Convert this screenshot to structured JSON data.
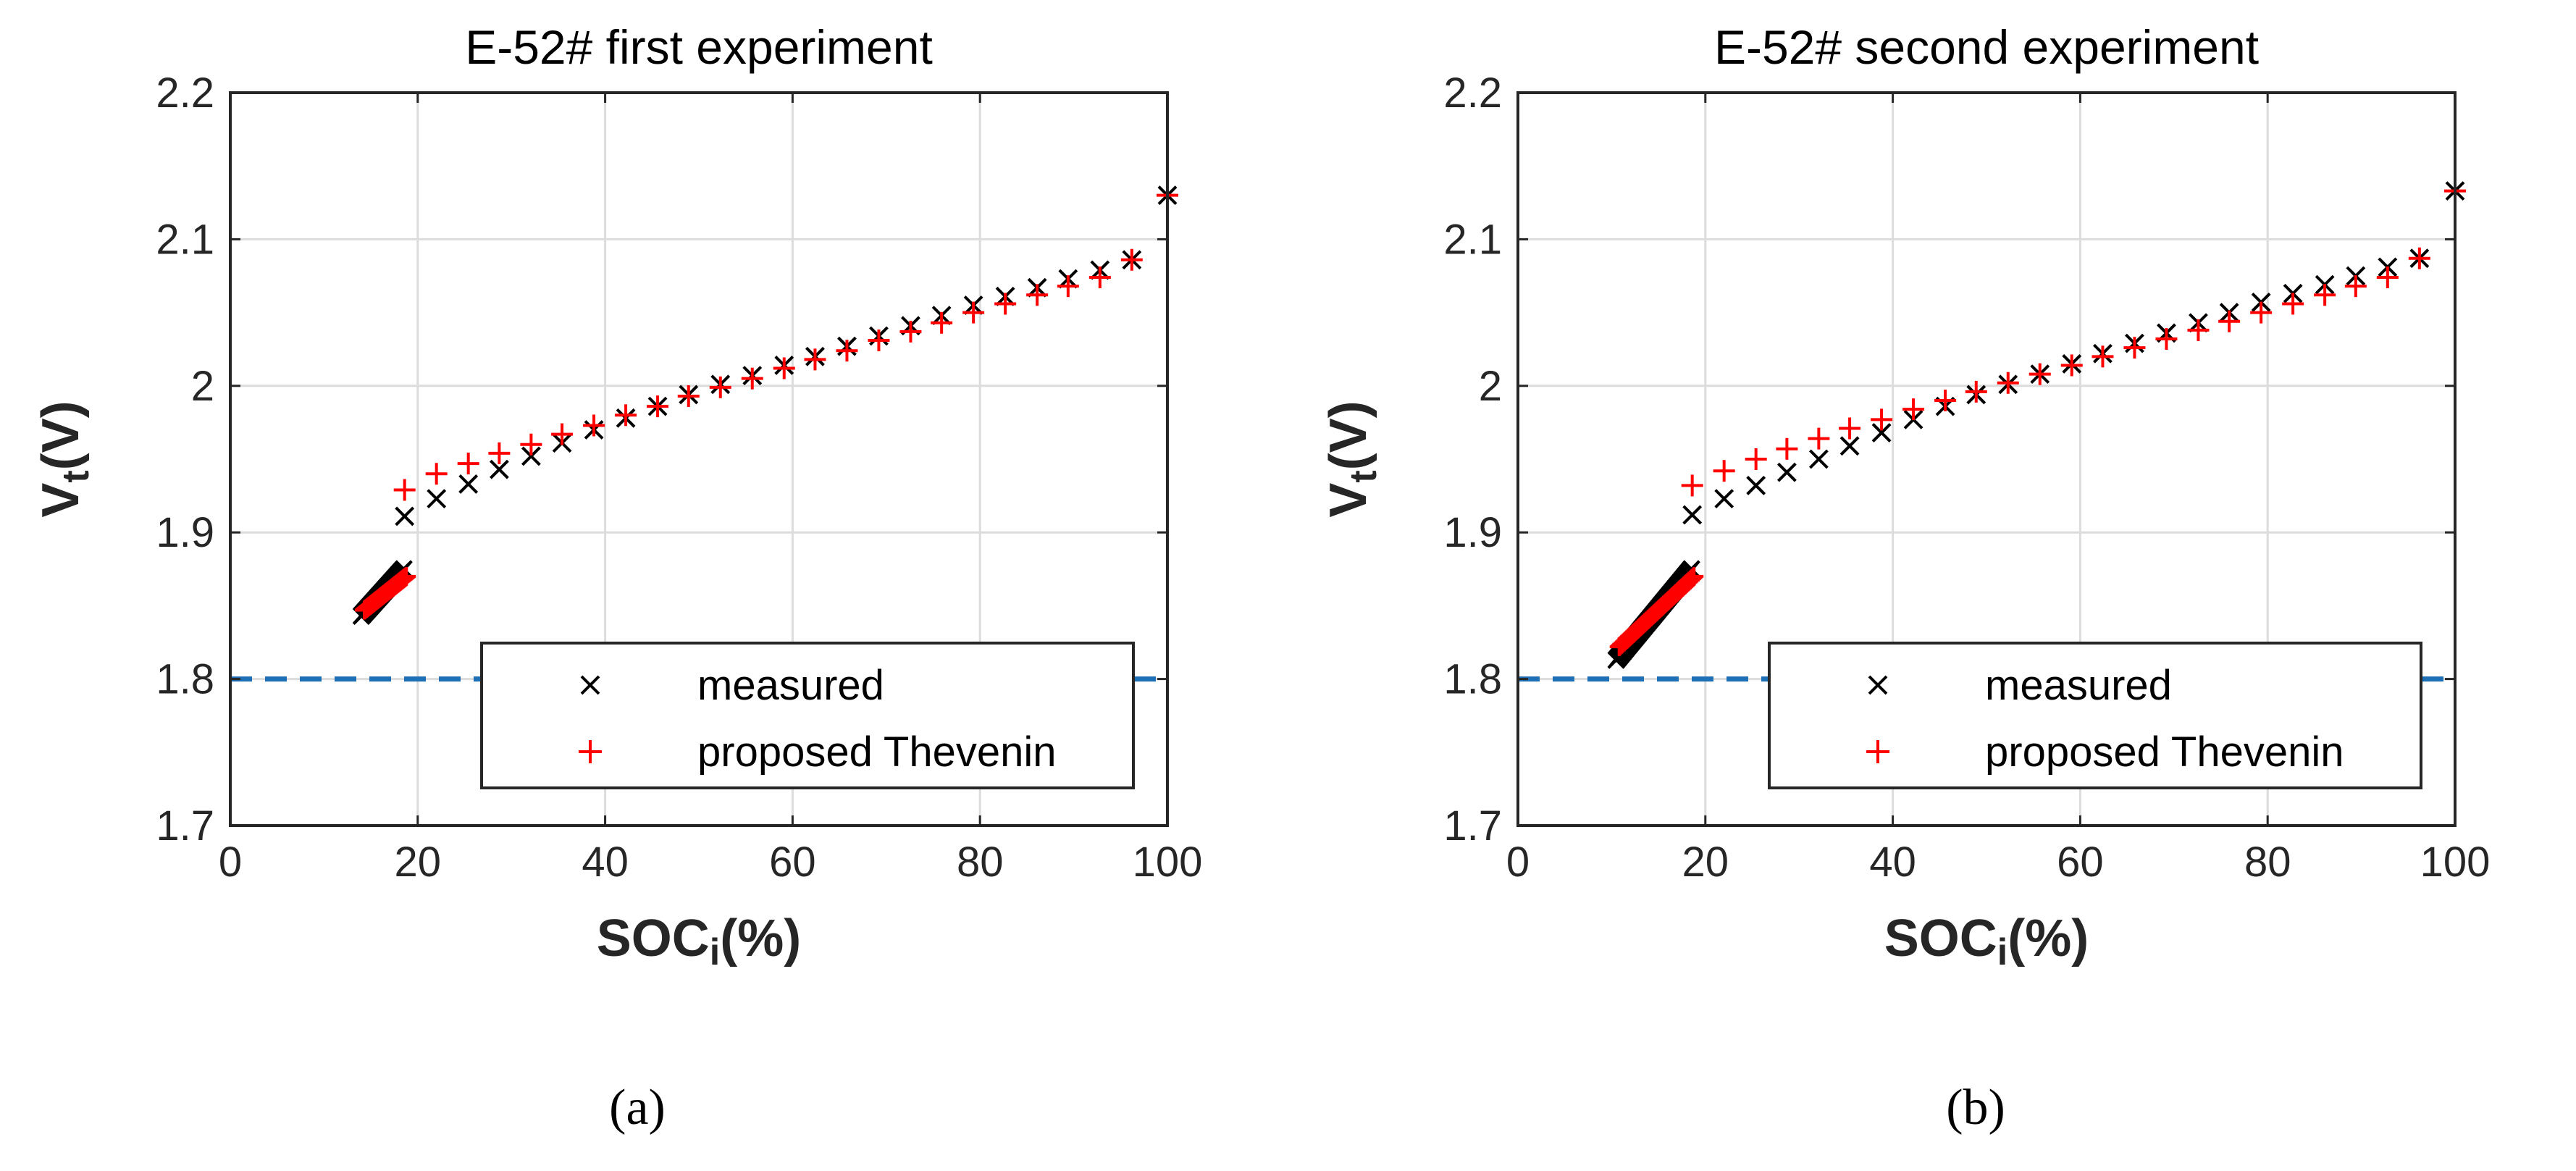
{
  "chart_data": [
    {
      "type": "scatter",
      "title": "E-52# first experiment",
      "xlabel": "SOCi(%)",
      "ylabel": "Vt(V)",
      "xlim": [
        0,
        100
      ],
      "ylim": [
        1.7,
        2.2
      ],
      "xticks": [
        "0",
        "20",
        "40",
        "60",
        "80",
        "100"
      ],
      "yticks": [
        "1.7",
        "1.8",
        "1.9",
        "2",
        "2.1",
        "2.2"
      ],
      "grid": true,
      "legend_position": "bottom-right",
      "reference_line": {
        "y": 1.8,
        "style": "dashed",
        "color": "#1f6fb4"
      },
      "cluster": {
        "x_start": 14,
        "x_end": 18.5,
        "measured_y": [
          1.843,
          1.875
        ],
        "proposed_y": [
          1.847,
          1.87
        ]
      },
      "series": [
        {
          "name": "measured",
          "marker": "x",
          "color": "#000000",
          "x": [
            18.6,
            22,
            25.4,
            28.7,
            32.1,
            35.4,
            38.8,
            42.2,
            45.6,
            48.9,
            52.3,
            55.7,
            59.1,
            62.4,
            65.8,
            69.2,
            72.6,
            75.9,
            79.3,
            82.7,
            86.1,
            89.4,
            92.8,
            96.2,
            100
          ],
          "y": [
            1.911,
            1.923,
            1.933,
            1.943,
            1.952,
            1.961,
            1.97,
            1.978,
            1.986,
            1.994,
            2.001,
            2.007,
            2.014,
            2.02,
            2.027,
            2.034,
            2.041,
            2.048,
            2.055,
            2.061,
            2.067,
            2.073,
            2.079,
            2.086,
            2.13
          ]
        },
        {
          "name": "proposed Thevenin",
          "marker": "+",
          "color": "#ff0000",
          "x": [
            18.6,
            22,
            25.4,
            28.7,
            32.1,
            35.4,
            38.8,
            42.2,
            45.6,
            48.9,
            52.3,
            55.7,
            59.1,
            62.4,
            65.8,
            69.2,
            72.6,
            75.9,
            79.3,
            82.7,
            86.1,
            89.4,
            92.8,
            96.2,
            100
          ],
          "y": [
            1.929,
            1.94,
            1.947,
            1.954,
            1.96,
            1.967,
            1.973,
            1.98,
            1.986,
            1.993,
            1.999,
            2.005,
            2.012,
            2.018,
            2.024,
            2.031,
            2.037,
            2.043,
            2.05,
            2.056,
            2.062,
            2.068,
            2.074,
            2.086,
            2.13
          ]
        }
      ],
      "caption": "(a)"
    },
    {
      "type": "scatter",
      "title": "E-52# second experiment",
      "xlabel": "SOCi(%)",
      "ylabel": "Vt(V)",
      "xlim": [
        0,
        100
      ],
      "ylim": [
        1.7,
        2.2
      ],
      "xticks": [
        "0",
        "20",
        "40",
        "60",
        "80",
        "100"
      ],
      "yticks": [
        "1.7",
        "1.8",
        "1.9",
        "2",
        "2.1",
        "2.2"
      ],
      "grid": true,
      "legend_position": "bottom-right",
      "reference_line": {
        "y": 1.8,
        "style": "dashed",
        "color": "#1f6fb4"
      },
      "cluster": {
        "x_start": 10.5,
        "x_end": 18.5,
        "measured_y": [
          1.813,
          1.875
        ],
        "proposed_y": [
          1.822,
          1.87
        ]
      },
      "series": [
        {
          "name": "measured",
          "marker": "x",
          "color": "#000000",
          "x": [
            18.6,
            22,
            25.4,
            28.7,
            32.1,
            35.4,
            38.8,
            42.2,
            45.6,
            48.9,
            52.3,
            55.7,
            59.1,
            62.4,
            65.8,
            69.2,
            72.6,
            75.9,
            79.3,
            82.7,
            86.1,
            89.4,
            92.8,
            96.2,
            100
          ],
          "y": [
            1.912,
            1.923,
            1.932,
            1.941,
            1.95,
            1.959,
            1.968,
            1.977,
            1.986,
            1.994,
            2.001,
            2.008,
            2.015,
            2.022,
            2.029,
            2.036,
            2.043,
            2.05,
            2.057,
            2.063,
            2.069,
            2.075,
            2.081,
            2.087,
            2.133
          ]
        },
        {
          "name": "proposed Thevenin",
          "marker": "+",
          "color": "#ff0000",
          "x": [
            18.6,
            22,
            25.4,
            28.7,
            32.1,
            35.4,
            38.8,
            42.2,
            45.6,
            48.9,
            52.3,
            55.7,
            59.1,
            62.4,
            65.8,
            69.2,
            72.6,
            75.9,
            79.3,
            82.7,
            86.1,
            89.4,
            92.8,
            96.2,
            100
          ],
          "y": [
            1.932,
            1.942,
            1.95,
            1.957,
            1.964,
            1.971,
            1.977,
            1.984,
            1.99,
            1.996,
            2.002,
            2.008,
            2.014,
            2.02,
            2.026,
            2.032,
            2.038,
            2.044,
            2.05,
            2.056,
            2.062,
            2.068,
            2.074,
            2.087,
            2.133
          ]
        }
      ],
      "caption": "(b)"
    }
  ]
}
